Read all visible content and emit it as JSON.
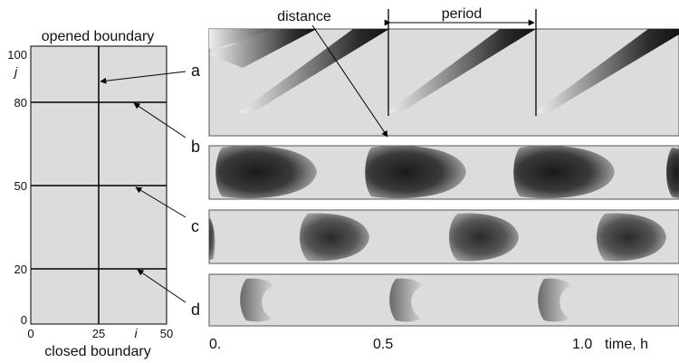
{
  "grid": {
    "top_label": "opened boundary",
    "bottom_label": "closed boundary",
    "y_axis_label": "j",
    "x_axis_label": "i",
    "y_ticks": [
      "100",
      "80",
      "50",
      "20",
      "0"
    ],
    "x_ticks": [
      "0",
      "25",
      "50"
    ]
  },
  "pointer_labels": [
    "a",
    "b",
    "c",
    "d"
  ],
  "annotations": {
    "distance": "distance",
    "period": "period"
  },
  "time_axis": {
    "ticks": [
      "0.",
      "0.5",
      "1.0"
    ],
    "label": "time, h"
  },
  "colors": {
    "panel_bg": "#dcdcdc",
    "front": "#202020",
    "line": "#000000"
  }
}
